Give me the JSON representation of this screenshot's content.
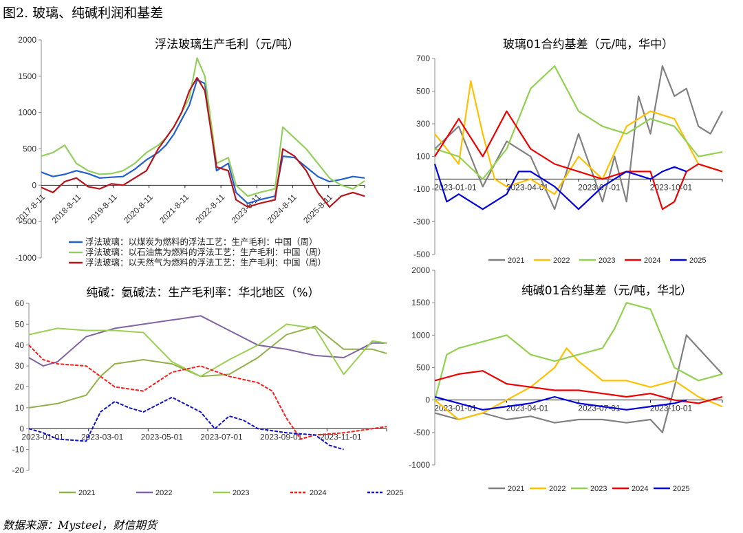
{
  "figure_title": "图2.  玻璃、纯碱利润和基差",
  "source": "数据来源：Mysteel，财信期货",
  "colors": {
    "blue": "#1f5fd0",
    "green": "#92cf5c",
    "darkred": "#b8121b",
    "gray": "#808080",
    "yellow": "#ffc000",
    "lightgreen": "#92d050",
    "red": "#ee0000",
    "darkblue": "#0000dd",
    "olive": "#8fb04a",
    "purple": "#8064a2",
    "lime": "#9bcf53",
    "brightred": "#ff1a1a",
    "navy": "#1010cc"
  },
  "chart_data": [
    {
      "id": "glass-profit",
      "type": "line",
      "title": "浮法玻璃生产毛利（元/吨）",
      "ylim": [
        -1000,
        2000
      ],
      "yticks": [
        "2000",
        "1500",
        "1000",
        "500",
        "0",
        "-500",
        "-1000"
      ],
      "xticks": [
        "2017-8-11",
        "2018-8-11",
        "2019-8-11",
        "2020-8-11",
        "2021-8-11",
        "2022-8-11",
        "2023-8-11",
        "2024-8-11",
        "2025-8-11"
      ],
      "xrange": [
        0,
        8.3
      ],
      "series": [
        {
          "name": "浮法玻璃：以煤炭为燃料的浮法工艺：生产毛利：中国（周）",
          "color": "blue",
          "x": [
            0,
            0.3,
            0.6,
            0.9,
            1.2,
            1.5,
            1.8,
            2.1,
            2.4,
            2.7,
            3.0,
            3.2,
            3.4,
            3.6,
            3.8,
            4.0,
            4.2,
            4.5,
            4.8,
            5.0,
            5.3,
            5.6,
            6.0,
            6.2,
            6.5,
            6.8,
            7.1,
            7.4,
            7.7,
            8.0,
            8.3
          ],
          "y": [
            180,
            120,
            150,
            200,
            160,
            100,
            110,
            120,
            220,
            350,
            450,
            550,
            700,
            900,
            1100,
            1450,
            1400,
            200,
            300,
            -100,
            -250,
            -200,
            -150,
            400,
            380,
            250,
            120,
            50,
            80,
            120,
            100
          ]
        },
        {
          "name": "浮法玻璃：以石油焦为燃料的浮法工艺：生产毛利：中国（周）",
          "color": "green",
          "x": [
            0,
            0.3,
            0.6,
            0.9,
            1.2,
            1.5,
            1.8,
            2.1,
            2.4,
            2.7,
            3.0,
            3.2,
            3.4,
            3.6,
            3.8,
            4.0,
            4.2,
            4.5,
            4.8,
            5.0,
            5.3,
            5.6,
            6.0,
            6.2,
            6.5,
            6.8,
            7.1,
            7.4,
            7.7,
            8.0,
            8.3
          ],
          "y": [
            400,
            450,
            550,
            300,
            200,
            150,
            160,
            200,
            300,
            450,
            550,
            650,
            800,
            1000,
            1200,
            1750,
            1500,
            300,
            380,
            0,
            -150,
            -100,
            -50,
            800,
            650,
            500,
            300,
            100,
            0,
            -50,
            60
          ]
        },
        {
          "name": "浮法玻璃：以天然气为燃料的浮法工艺：生产毛利：中国（周）",
          "color": "darkred",
          "x": [
            0,
            0.3,
            0.6,
            0.9,
            1.2,
            1.5,
            1.8,
            2.1,
            2.4,
            2.7,
            3.0,
            3.2,
            3.4,
            3.6,
            3.8,
            4.0,
            4.2,
            4.5,
            4.8,
            5.0,
            5.3,
            5.6,
            6.0,
            6.2,
            6.5,
            6.8,
            7.1,
            7.4,
            7.7,
            8.0,
            8.3
          ],
          "y": [
            -30,
            -100,
            50,
            100,
            -20,
            -50,
            20,
            0,
            100,
            200,
            500,
            650,
            800,
            1000,
            1300,
            1480,
            1300,
            250,
            200,
            -200,
            -300,
            -250,
            -200,
            500,
            400,
            200,
            -100,
            -300,
            -150,
            -100,
            -150
          ]
        }
      ]
    },
    {
      "id": "glass-basis",
      "type": "line",
      "title": "玻璃01合约基差（元/吨，华中）",
      "ylim": [
        -500,
        800
      ],
      "yticks": [
        "700",
        "500",
        "300",
        "100",
        "-100",
        "-300",
        "-500"
      ],
      "xticks": [
        "2023-01-01",
        "2023-04-01",
        "2023-07-01",
        "2023-10-01"
      ],
      "xrange": [
        0,
        12
      ],
      "series": [
        {
          "name": "2021",
          "color": "gray",
          "x": [
            0,
            1,
            2,
            3,
            4,
            5,
            6,
            7,
            7.5,
            8,
            8.5,
            9,
            9.5,
            10,
            10.5,
            11,
            11.5,
            12
          ],
          "y": [
            200,
            350,
            -50,
            250,
            150,
            -200,
            300,
            -150,
            150,
            -150,
            550,
            300,
            750,
            550,
            600,
            350,
            300,
            450
          ]
        },
        {
          "name": "2022",
          "color": "yellow",
          "x": [
            0,
            1,
            1.5,
            2,
            2.5,
            3,
            4,
            5,
            6,
            7,
            8,
            9,
            10,
            11,
            12
          ],
          "y": [
            300,
            100,
            650,
            300,
            0,
            -50,
            0,
            -100,
            150,
            0,
            350,
            450,
            400,
            100,
            50
          ]
        },
        {
          "name": "2023",
          "color": "lightgreen",
          "x": [
            0,
            1,
            2,
            3,
            4,
            5,
            6,
            7,
            8,
            9,
            10,
            11,
            12
          ],
          "y": [
            200,
            150,
            0,
            200,
            600,
            750,
            450,
            350,
            300,
            400,
            350,
            150,
            180
          ]
        },
        {
          "name": "2024",
          "color": "red",
          "x": [
            0,
            1,
            2,
            3,
            4,
            5,
            6,
            7,
            8,
            9,
            9.5,
            10,
            10.5,
            11,
            12
          ],
          "y": [
            150,
            400,
            150,
            450,
            200,
            100,
            50,
            0,
            50,
            50,
            -200,
            -150,
            50,
            100,
            50
          ]
        },
        {
          "name": "2025",
          "color": "darkblue",
          "x": [
            0,
            0.5,
            1,
            2,
            3,
            3.5,
            4,
            5,
            6,
            7,
            8,
            9,
            9.5,
            10,
            10.5
          ],
          "y": [
            100,
            -150,
            -100,
            -200,
            -100,
            50,
            50,
            -50,
            -200,
            -50,
            50,
            0,
            50,
            80,
            50
          ]
        }
      ]
    },
    {
      "id": "soda-profit",
      "type": "line",
      "title": "纯碱：氨碱法：生产毛利率：华北地区（%）",
      "ylim": [
        -20,
        60
      ],
      "yticks": [
        "60",
        "50",
        "40",
        "30",
        "20",
        "10",
        "0",
        "-10",
        "-20"
      ],
      "xticks": [
        "2023-01-01",
        "2023-03-01",
        "2023-05-01",
        "2023-07-01",
        "2023-09-01",
        "2023-11-01"
      ],
      "xrange": [
        0,
        12.5
      ],
      "series": [
        {
          "name": "2021",
          "color": "olive",
          "x": [
            0,
            1,
            2,
            2.5,
            3,
            4,
            5,
            6,
            7,
            8,
            9,
            10,
            11,
            12,
            12.5
          ],
          "y": [
            10,
            12,
            16,
            25,
            31,
            33,
            31,
            25,
            26,
            34,
            45,
            49,
            38,
            38,
            36
          ]
        },
        {
          "name": "2022",
          "color": "purple",
          "x": [
            0,
            0.5,
            1,
            2,
            3,
            4,
            5,
            6,
            7,
            8,
            9,
            10,
            11,
            12,
            12.5
          ],
          "y": [
            34,
            30,
            32,
            44,
            48,
            50,
            52,
            54,
            47,
            40,
            38,
            35,
            34,
            41,
            41
          ]
        },
        {
          "name": "2023",
          "color": "lime",
          "x": [
            0,
            1,
            2,
            3,
            4,
            5,
            6,
            7,
            8,
            9,
            10,
            11,
            12,
            12.5
          ],
          "y": [
            45,
            48,
            47,
            47,
            46,
            32,
            25,
            33,
            40,
            50,
            48,
            26,
            42,
            41
          ]
        },
        {
          "name": "2024",
          "color": "brightred",
          "x": [
            0,
            0.5,
            1,
            2,
            3,
            4,
            5,
            6,
            7,
            8,
            8.5,
            9,
            9.5,
            10,
            11,
            12,
            12.5
          ],
          "y": [
            40,
            33,
            31,
            30,
            20,
            18,
            27,
            30,
            25,
            22,
            18,
            5,
            -5,
            -3,
            -2,
            0,
            1
          ]
        },
        {
          "name": "2025",
          "color": "navy",
          "x": [
            0,
            0.5,
            1,
            2,
            2.5,
            3,
            3.5,
            4,
            5,
            6,
            6.5,
            7,
            7.5,
            8,
            9,
            10,
            10.5,
            11
          ],
          "y": [
            0,
            -2,
            -5,
            -6,
            8,
            13,
            10,
            8,
            15,
            8,
            0,
            6,
            4,
            0,
            -2,
            -3,
            -8,
            -10
          ]
        }
      ]
    },
    {
      "id": "soda-basis",
      "type": "line",
      "title": "纯碱01合约基差（元/吨，华北）",
      "ylim": [
        -1000,
        2000
      ],
      "yticks": [
        "2000",
        "1500",
        "1000",
        "500",
        "0",
        "-500",
        "-1000"
      ],
      "xticks": [
        "2023-01-01",
        "2023-04-01",
        "2023-07-01",
        "2023-10-01"
      ],
      "xrange": [
        0,
        12
      ],
      "series": [
        {
          "name": "2021",
          "color": "gray",
          "x": [
            0,
            1,
            2,
            3,
            4,
            5,
            6,
            7,
            8,
            9,
            9.5,
            10,
            10.5,
            11,
            12
          ],
          "y": [
            -200,
            -300,
            -200,
            -300,
            -250,
            -350,
            -300,
            -300,
            -350,
            -300,
            -500,
            200,
            1000,
            800,
            400
          ]
        },
        {
          "name": "2022",
          "color": "yellow",
          "x": [
            0,
            1,
            2,
            3,
            4,
            5,
            5.5,
            6,
            7,
            8,
            9,
            10,
            11,
            12
          ],
          "y": [
            0,
            -300,
            -200,
            0,
            200,
            500,
            800,
            600,
            300,
            300,
            200,
            300,
            50,
            -100
          ]
        },
        {
          "name": "2023",
          "color": "lightgreen",
          "x": [
            0,
            0.5,
            1,
            2,
            3,
            4,
            5,
            6,
            7,
            7.5,
            8,
            9,
            10,
            11,
            12
          ],
          "y": [
            0,
            700,
            800,
            900,
            1000,
            700,
            600,
            700,
            800,
            1100,
            1500,
            1400,
            500,
            300,
            400
          ]
        },
        {
          "name": "2024",
          "color": "red",
          "x": [
            0,
            1,
            2,
            3,
            4,
            5,
            6,
            7,
            8,
            9,
            10,
            11,
            12
          ],
          "y": [
            300,
            400,
            450,
            250,
            200,
            150,
            150,
            100,
            50,
            100,
            0,
            -50,
            50
          ]
        },
        {
          "name": "2025",
          "color": "darkblue",
          "x": [
            0,
            1,
            2,
            3,
            4,
            5,
            6,
            7,
            8,
            9,
            10,
            10.5
          ],
          "y": [
            50,
            -50,
            -150,
            -100,
            -50,
            50,
            -50,
            -100,
            -150,
            -100,
            -50,
            0
          ]
        }
      ]
    }
  ]
}
